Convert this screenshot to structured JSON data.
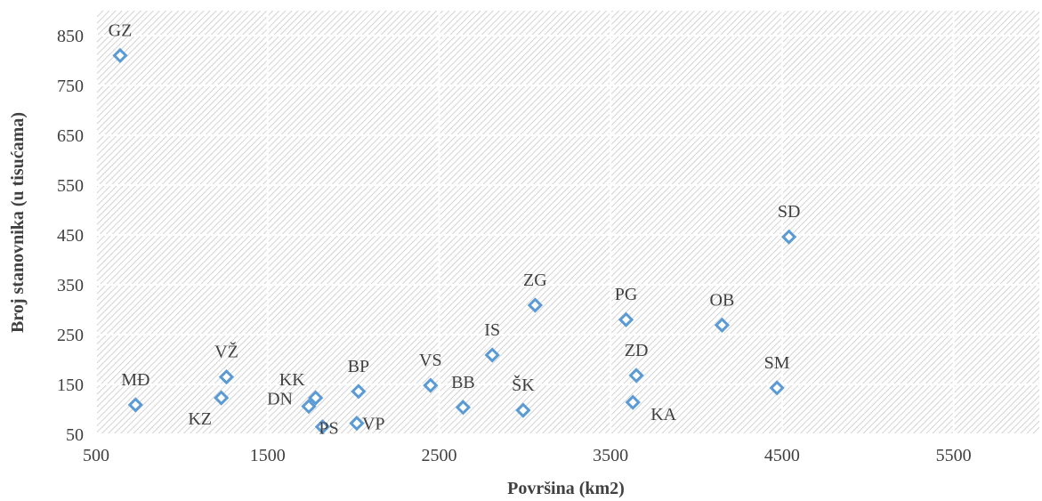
{
  "chart_data": {
    "type": "scatter",
    "title": "",
    "xlabel": "Površina (km2)",
    "ylabel": "Broj stanovnika (u tisućama)",
    "xlim": [
      500,
      6000
    ],
    "ylim": [
      50,
      900
    ],
    "x_ticks": [
      500,
      1500,
      2500,
      3500,
      4500,
      5500
    ],
    "y_ticks": [
      50,
      150,
      250,
      350,
      450,
      550,
      650,
      750,
      850
    ],
    "grid": true,
    "legend": "none",
    "marker_color": "#5B9BD5",
    "points": [
      {
        "label": "GZ",
        "x": 640,
        "y": 810,
        "pos": "top"
      },
      {
        "label": "MĐ",
        "x": 730,
        "y": 109,
        "pos": "top"
      },
      {
        "label": "KZ",
        "x": 1230,
        "y": 123,
        "pos": "bottom-left"
      },
      {
        "label": "VŽ",
        "x": 1260,
        "y": 165,
        "pos": "top"
      },
      {
        "label": "DN",
        "x": 1740,
        "y": 106,
        "pos": "left"
      },
      {
        "label": "KK",
        "x": 1780,
        "y": 123,
        "pos": "top-left"
      },
      {
        "label": "PS",
        "x": 1820,
        "y": 65,
        "pos": "right-down"
      },
      {
        "label": "VP",
        "x": 2020,
        "y": 72,
        "pos": "right"
      },
      {
        "label": "BP",
        "x": 2030,
        "y": 136,
        "pos": "top"
      },
      {
        "label": "VS",
        "x": 2450,
        "y": 148,
        "pos": "top"
      },
      {
        "label": "BB",
        "x": 2640,
        "y": 104,
        "pos": "top"
      },
      {
        "label": "IS",
        "x": 2810,
        "y": 209,
        "pos": "top"
      },
      {
        "label": "ŠK",
        "x": 2990,
        "y": 98,
        "pos": "top"
      },
      {
        "label": "ZG",
        "x": 3060,
        "y": 309,
        "pos": "top"
      },
      {
        "label": "PG",
        "x": 3590,
        "y": 280,
        "pos": "top"
      },
      {
        "label": "KA",
        "x": 3630,
        "y": 114,
        "pos": "right-down"
      },
      {
        "label": "ZD",
        "x": 3650,
        "y": 168,
        "pos": "top"
      },
      {
        "label": "OB",
        "x": 4150,
        "y": 269,
        "pos": "top"
      },
      {
        "label": "SM",
        "x": 4470,
        "y": 143,
        "pos": "top"
      },
      {
        "label": "SD",
        "x": 4540,
        "y": 446,
        "pos": "top"
      }
    ]
  }
}
